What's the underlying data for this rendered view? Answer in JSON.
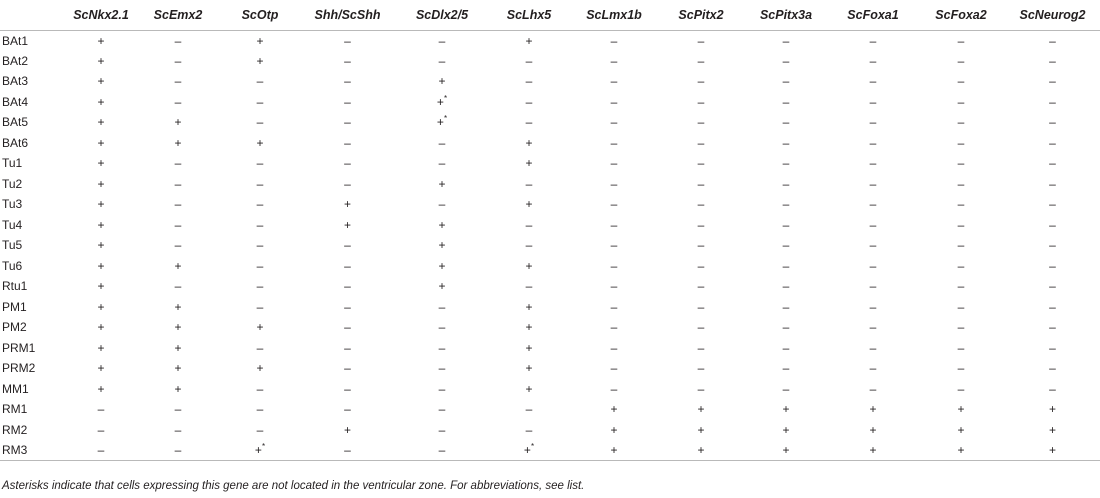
{
  "table": {
    "columns": [
      "",
      "ScNkx2.1",
      "ScEmx2",
      "ScOtp",
      "Shh/ScShh",
      "ScDlx2/5",
      "ScLhx5",
      "ScLmx1b",
      "ScPitx2",
      "ScPitx3a",
      "ScFoxa1",
      "ScFoxa2",
      "ScNeurog2"
    ],
    "rows": [
      {
        "label": "BAt1",
        "cells": [
          "+",
          "–",
          "+",
          "–",
          "–",
          "+",
          "–",
          "–",
          "–",
          "–",
          "–",
          "–"
        ]
      },
      {
        "label": "BAt2",
        "cells": [
          "+",
          "–",
          "+",
          "–",
          "–",
          "–",
          "–",
          "–",
          "–",
          "–",
          "–",
          "–"
        ]
      },
      {
        "label": "BAt3",
        "cells": [
          "+",
          "–",
          "–",
          "–",
          "+",
          "–",
          "–",
          "–",
          "–",
          "–",
          "–",
          "–"
        ]
      },
      {
        "label": "BAt4",
        "cells": [
          "+",
          "–",
          "–",
          "–",
          "+*",
          "–",
          "–",
          "–",
          "–",
          "–",
          "–",
          "–"
        ]
      },
      {
        "label": "BAt5",
        "cells": [
          "+",
          "+",
          "–",
          "–",
          "+*",
          "–",
          "–",
          "–",
          "–",
          "–",
          "–",
          "–"
        ]
      },
      {
        "label": "BAt6",
        "cells": [
          "+",
          "+",
          "+",
          "–",
          "–",
          "+",
          "–",
          "–",
          "–",
          "–",
          "–",
          "–"
        ]
      },
      {
        "label": "Tu1",
        "cells": [
          "+",
          "–",
          "–",
          "–",
          "–",
          "+",
          "–",
          "–",
          "–",
          "–",
          "–",
          "–"
        ]
      },
      {
        "label": "Tu2",
        "cells": [
          "+",
          "–",
          "–",
          "–",
          "+",
          "–",
          "–",
          "–",
          "–",
          "–",
          "–",
          "–"
        ]
      },
      {
        "label": "Tu3",
        "cells": [
          "+",
          "–",
          "–",
          "+",
          "–",
          "+",
          "–",
          "–",
          "–",
          "–",
          "–",
          "–"
        ]
      },
      {
        "label": "Tu4",
        "cells": [
          "+",
          "–",
          "–",
          "+",
          "+",
          "–",
          "–",
          "–",
          "–",
          "–",
          "–",
          "–"
        ]
      },
      {
        "label": "Tu5",
        "cells": [
          "+",
          "–",
          "–",
          "–",
          "+",
          "–",
          "–",
          "–",
          "–",
          "–",
          "–",
          "–"
        ]
      },
      {
        "label": "Tu6",
        "cells": [
          "+",
          "+",
          "–",
          "–",
          "+",
          "+",
          "–",
          "–",
          "–",
          "–",
          "–",
          "–"
        ]
      },
      {
        "label": "Rtu1",
        "cells": [
          "+",
          "–",
          "–",
          "–",
          "+",
          "–",
          "–",
          "–",
          "–",
          "–",
          "–",
          "–"
        ]
      },
      {
        "label": "PM1",
        "cells": [
          "+",
          "+",
          "–",
          "–",
          "–",
          "+",
          "–",
          "–",
          "–",
          "–",
          "–",
          "–"
        ]
      },
      {
        "label": "PM2",
        "cells": [
          "+",
          "+",
          "+",
          "–",
          "–",
          "+",
          "–",
          "–",
          "–",
          "–",
          "–",
          "–"
        ]
      },
      {
        "label": "PRM1",
        "cells": [
          "+",
          "+",
          "–",
          "–",
          "–",
          "+",
          "–",
          "–",
          "–",
          "–",
          "–",
          "–"
        ]
      },
      {
        "label": "PRM2",
        "cells": [
          "+",
          "+",
          "+",
          "–",
          "–",
          "+",
          "–",
          "–",
          "–",
          "–",
          "–",
          "–"
        ]
      },
      {
        "label": "MM1",
        "cells": [
          "+",
          "+",
          "–",
          "–",
          "–",
          "+",
          "–",
          "–",
          "–",
          "–",
          "–",
          "–"
        ]
      },
      {
        "label": "RM1",
        "cells": [
          "–",
          "–",
          "–",
          "–",
          "–",
          "–",
          "+",
          "+",
          "+",
          "+",
          "+",
          "+"
        ]
      },
      {
        "label": "RM2",
        "cells": [
          "–",
          "–",
          "–",
          "+",
          "–",
          "–",
          "+",
          "+",
          "+",
          "+",
          "+",
          "+"
        ]
      },
      {
        "label": "RM3",
        "cells": [
          "–",
          "–",
          "+*",
          "–",
          "–",
          "+*",
          "+",
          "+",
          "+",
          "+",
          "+",
          "+"
        ]
      }
    ]
  },
  "footnote": "Asterisks indicate that cells expressing this gene are not located in the ventricular zone. For abbreviations, see list."
}
